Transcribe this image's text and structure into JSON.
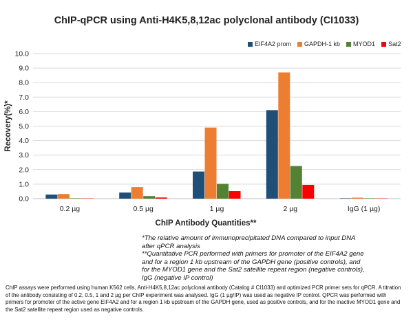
{
  "chart_data": {
    "type": "bar",
    "title": "ChIP-qPCR using Anti-H4K5,8,12ac polyclonal antibody (CI1033)",
    "xlabel": "ChIP Antibody Quantities**",
    "ylabel": "Recovery(%)*",
    "ylim": [
      0,
      10
    ],
    "yticks": [
      "0.0",
      "1.0",
      "2.0",
      "3.0",
      "4.0",
      "5.0",
      "6.0",
      "7.0",
      "8.0",
      "9.0",
      "10.0"
    ],
    "grid": true,
    "legend_position": "top-right",
    "categories": [
      "0.2 µg",
      "0.5 µg",
      "1 µg",
      "2 µg",
      "IgG (1 µg)"
    ],
    "series": [
      {
        "name": "EIF4A2 prom",
        "color": "#1f4e79",
        "values": [
          0.28,
          0.42,
          1.87,
          6.1,
          0.03
        ]
      },
      {
        "name": "GAPDH-1 kb",
        "color": "#ed7d31",
        "values": [
          0.32,
          0.8,
          4.9,
          8.7,
          0.07
        ]
      },
      {
        "name": "MYOD1",
        "color": "#548235",
        "values": [
          0.03,
          0.18,
          1.02,
          2.25,
          0.03
        ]
      },
      {
        "name": "Sat2",
        "color": "#ff0000",
        "values": [
          0.02,
          0.08,
          0.52,
          0.95,
          0.02
        ]
      }
    ]
  },
  "notes": [
    "*The relative amount of immunoprecipitated DNA compared to input DNA after qPCR analysis",
    "**Quantitative PCR performed with primers for promoter of the EIF4A2 gene and for a region 1 kb upstream of the GAPDH gene (positive controls), and for the MYOD1 gene and the Sat2 satellite repeat region (negative controls), IgG (negative IP control)"
  ],
  "caption": "ChIP assays were performed using human K562 cells, Anti-H4K5,8,12ac polyclonal antibody (Catalog # CI1033) and optimized PCR primer sets for qPCR. A titration of the antibody consisting of 0.2, 0.5, 1 and 2 µg per ChIP experiment was analysed. IgG (1 µg/IP) was used as negative IP control. QPCR was performed with primers for promoter of the active gene EIF4A2 and for a region 1 kb upstream of the GAPDH gene, used as positive controls, and for the inactive MYOD1 gene and the Sat2 satellite repeat region used as negative controls."
}
